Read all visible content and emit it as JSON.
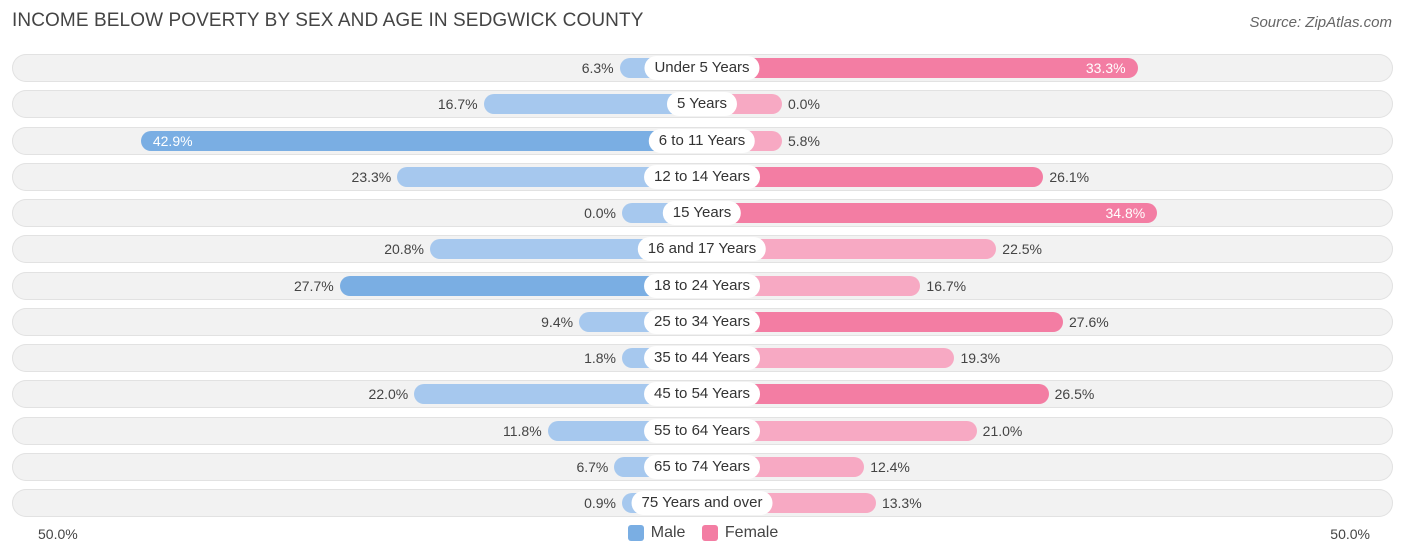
{
  "title": "INCOME BELOW POVERTY BY SEX AND AGE IN SEDGWICK COUNTY",
  "source": "Source: ZipAtlas.com",
  "colors": {
    "male": "#7aaee3",
    "female": "#f37da3"
  },
  "chart_data": {
    "type": "bar",
    "orientation": "horizontal-diverging",
    "title": "INCOME BELOW POVERTY BY SEX AND AGE IN SEDGWICK COUNTY",
    "categories": [
      "Under 5 Years",
      "5 Years",
      "6 to 11 Years",
      "12 to 14 Years",
      "15 Years",
      "16 and 17 Years",
      "18 to 24 Years",
      "25 to 34 Years",
      "35 to 44 Years",
      "45 to 54 Years",
      "55 to 64 Years",
      "65 to 74 Years",
      "75 Years and over"
    ],
    "series": [
      {
        "name": "Male",
        "values": [
          6.3,
          16.7,
          42.9,
          23.3,
          0.0,
          20.8,
          27.7,
          9.4,
          1.8,
          22.0,
          11.8,
          6.7,
          0.9
        ],
        "labels": [
          "6.3%",
          "16.7%",
          "42.9%",
          "23.3%",
          "0.0%",
          "20.8%",
          "27.7%",
          "9.4%",
          "1.8%",
          "22.0%",
          "11.8%",
          "6.7%",
          "0.9%"
        ]
      },
      {
        "name": "Female",
        "values": [
          33.3,
          0.0,
          5.8,
          26.1,
          34.8,
          22.5,
          16.7,
          27.6,
          19.3,
          26.5,
          21.0,
          12.4,
          13.3
        ],
        "labels": [
          "33.3%",
          "0.0%",
          "5.8%",
          "26.1%",
          "34.8%",
          "22.5%",
          "16.7%",
          "27.6%",
          "19.3%",
          "26.5%",
          "21.0%",
          "12.4%",
          "13.3%"
        ]
      }
    ],
    "xlim": [
      -50,
      50
    ],
    "axis_left_label": "50.0%",
    "axis_right_label": "50.0%",
    "legend": [
      "Male",
      "Female"
    ],
    "legend_position": "bottom-center",
    "grid": false
  }
}
